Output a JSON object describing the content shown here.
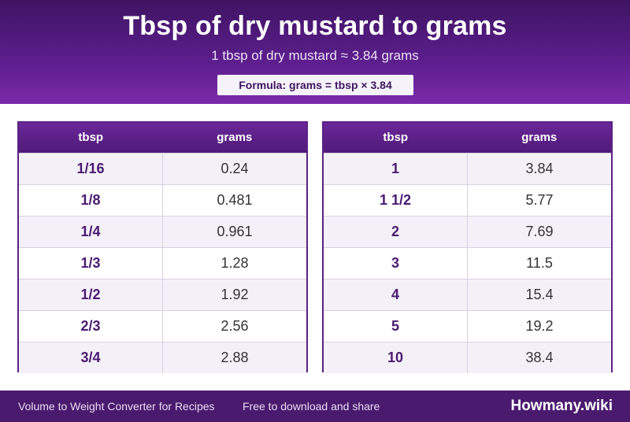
{
  "header": {
    "title": "Tbsp of dry mustard to grams",
    "subtitle": "1 tbsp of dry mustard ≈ 3.84 grams",
    "formula": "Formula: grams = tbsp × 3.84"
  },
  "tables": [
    {
      "headers": [
        "tbsp",
        "grams"
      ],
      "rows": [
        {
          "tbsp": "1/16",
          "grams": "0.24"
        },
        {
          "tbsp": "1/8",
          "grams": "0.481"
        },
        {
          "tbsp": "1/4",
          "grams": "0.961"
        },
        {
          "tbsp": "1/3",
          "grams": "1.28"
        },
        {
          "tbsp": "1/2",
          "grams": "1.92"
        },
        {
          "tbsp": "2/3",
          "grams": "2.56"
        },
        {
          "tbsp": "3/4",
          "grams": "2.88"
        }
      ]
    },
    {
      "headers": [
        "tbsp",
        "grams"
      ],
      "rows": [
        {
          "tbsp": "1",
          "grams": "3.84"
        },
        {
          "tbsp": "1 1/2",
          "grams": "5.77"
        },
        {
          "tbsp": "2",
          "grams": "7.69"
        },
        {
          "tbsp": "3",
          "grams": "11.5"
        },
        {
          "tbsp": "4",
          "grams": "15.4"
        },
        {
          "tbsp": "5",
          "grams": "19.2"
        },
        {
          "tbsp": "10",
          "grams": "38.4"
        }
      ]
    }
  ],
  "footer": {
    "left_text": "Volume to Weight Converter for Recipes",
    "mid_text": "Free to download and share",
    "brand": "Howmany.wiki"
  },
  "colors": {
    "header_purple": "#5a1d8a",
    "accent_purple": "#4a1a70",
    "footer_purple": "#4a1a6e"
  }
}
